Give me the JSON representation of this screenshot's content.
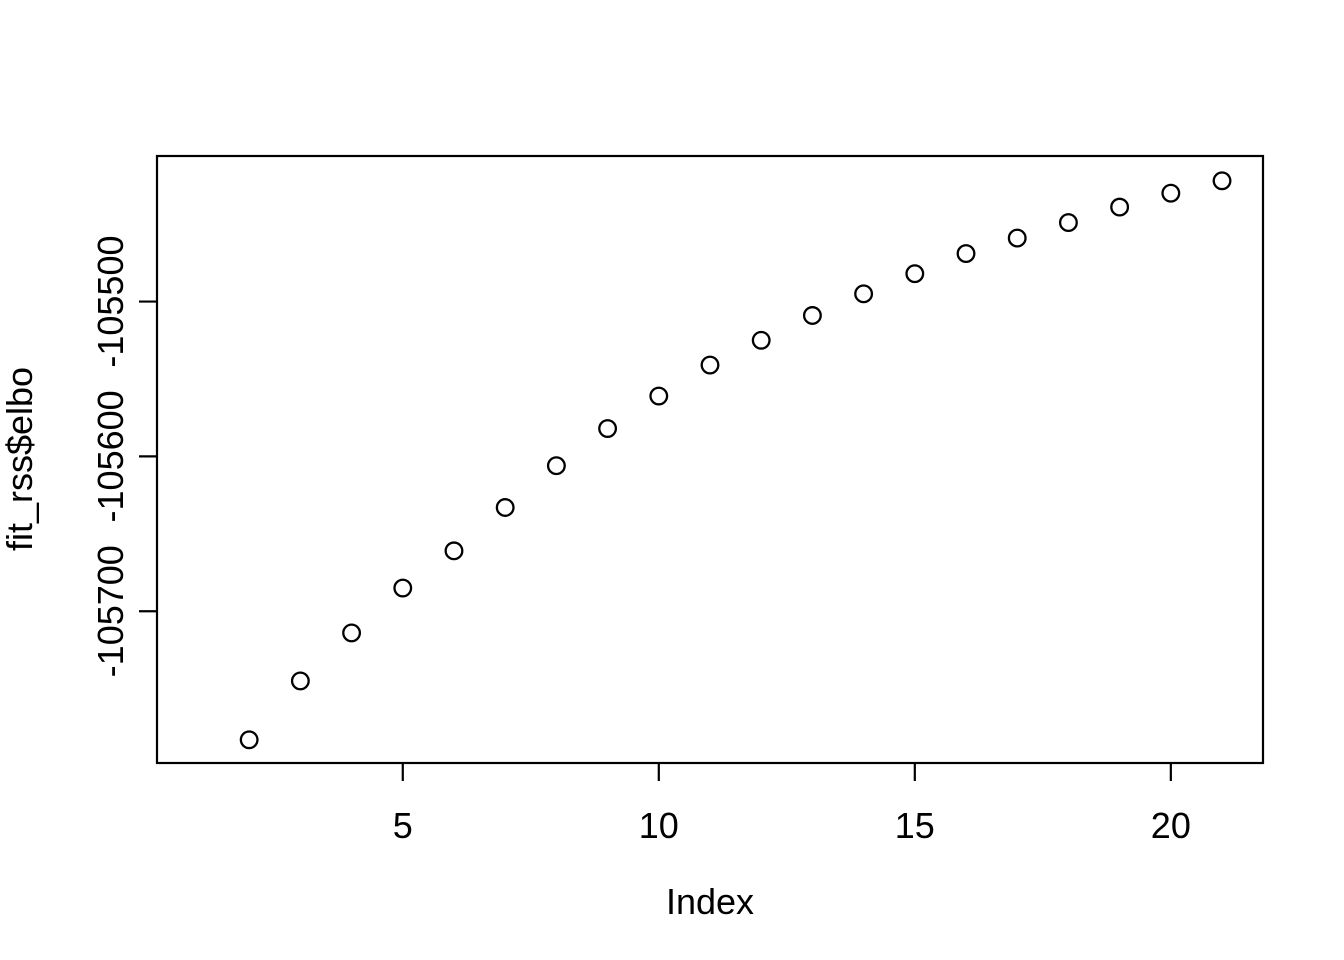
{
  "chart_data": {
    "type": "scatter",
    "title": "",
    "xlabel": "Index",
    "ylabel": "fit_rss$elbo",
    "marker": "open-circle",
    "marker_color": "#000000",
    "axis_color": "#000000",
    "background_color": "#ffffff",
    "grid": false,
    "legend": false,
    "xlim": [
      0.2,
      21.8
    ],
    "ylim": [
      -105798,
      -105406
    ],
    "xticks": [
      5,
      10,
      15,
      20
    ],
    "yticks": [
      -105700,
      -105600,
      -105500
    ],
    "x": [
      2,
      3,
      4,
      5,
      6,
      7,
      8,
      9,
      10,
      11,
      12,
      13,
      14,
      15,
      16,
      17,
      18,
      19,
      20,
      21
    ],
    "y": [
      -105783,
      -105745,
      -105714,
      -105685,
      -105661,
      -105633,
      -105606,
      -105582,
      -105561,
      -105541,
      -105525,
      -105509,
      -105495,
      -105482,
      -105469,
      -105459,
      -105449,
      -105439,
      -105430,
      -105422
    ]
  }
}
